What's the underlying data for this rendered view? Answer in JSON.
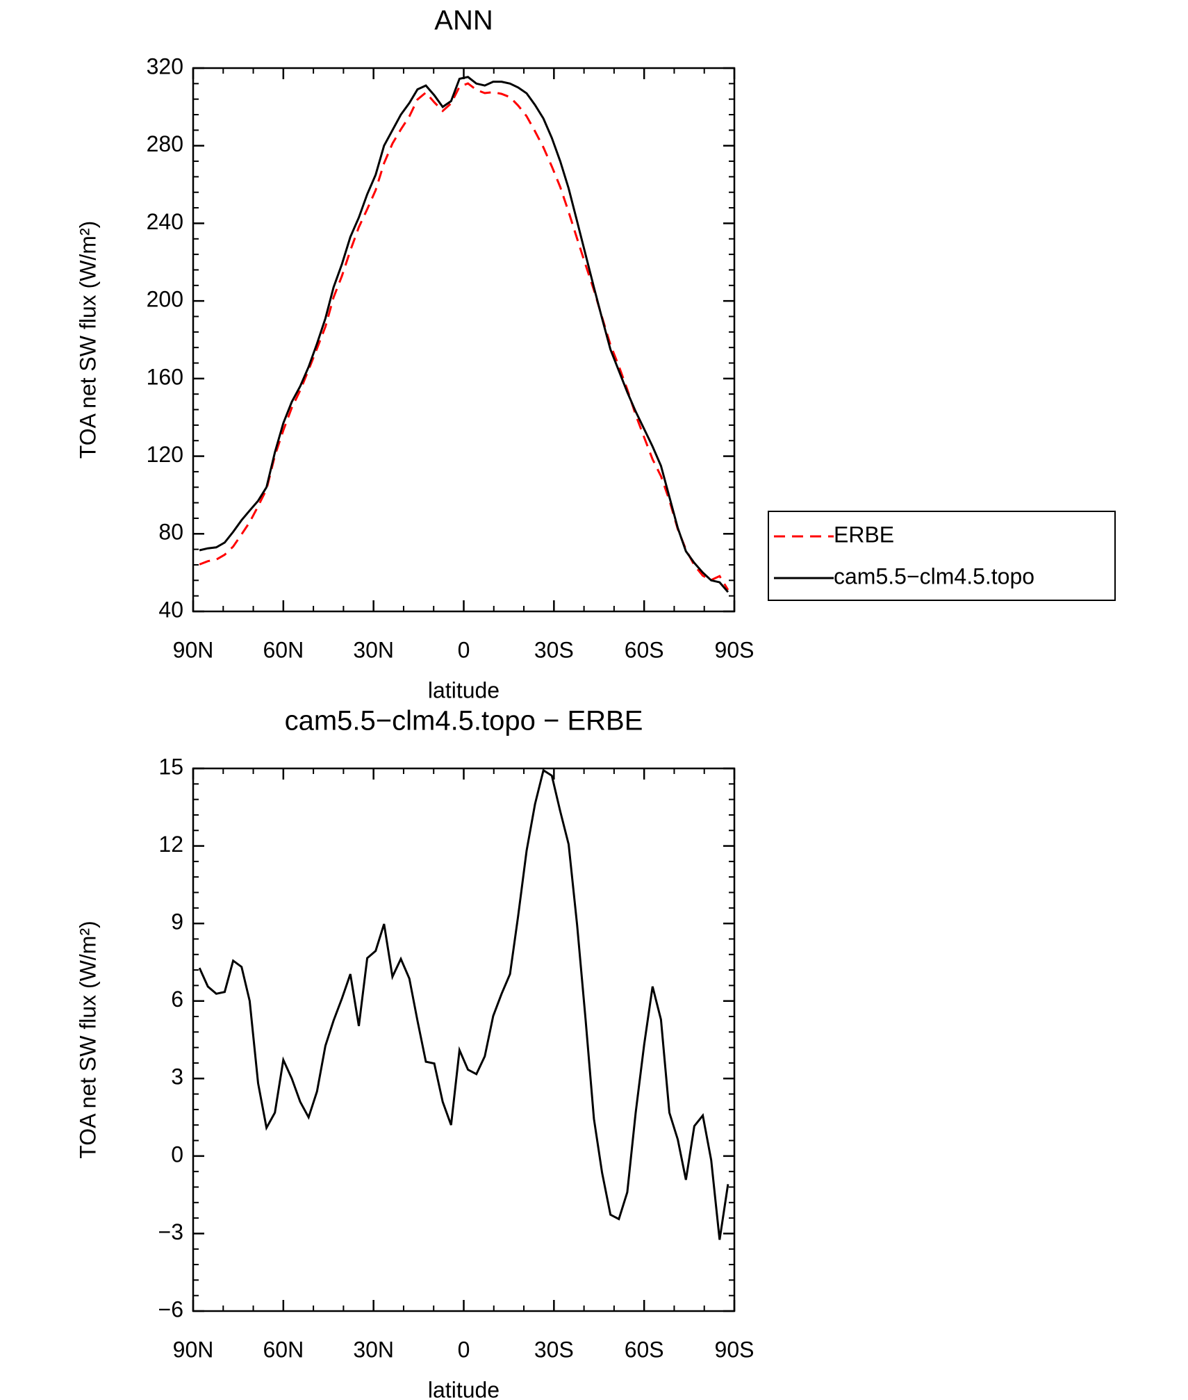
{
  "chart_data": [
    {
      "type": "line",
      "title": "ANN",
      "xlabel": "latitude",
      "ylabel": "TOA net SW flux (W/m²)",
      "x": [
        87.9,
        85.1,
        82.3,
        79.5,
        76.7,
        73.9,
        71.2,
        68.4,
        65.6,
        62.8,
        60.0,
        57.2,
        54.4,
        51.6,
        48.8,
        46.0,
        43.3,
        40.5,
        37.7,
        34.9,
        32.1,
        29.3,
        26.5,
        23.7,
        20.9,
        18.1,
        15.4,
        12.6,
        9.8,
        7.0,
        4.2,
        1.4,
        -1.4,
        -4.2,
        -7.0,
        -9.8,
        -12.6,
        -15.4,
        -18.1,
        -20.9,
        -23.7,
        -26.5,
        -29.3,
        -32.1,
        -34.9,
        -37.7,
        -40.5,
        -43.3,
        -46.0,
        -48.8,
        -51.6,
        -54.4,
        -57.2,
        -60.0,
        -62.8,
        -65.6,
        -68.4,
        -71.2,
        -73.9,
        -76.7,
        -79.5,
        -82.3,
        -85.1,
        -87.9
      ],
      "series": [
        {
          "name": "ERBE",
          "color": "#ff0000",
          "style": "dashed",
          "values": [
            64.2,
            65.9,
            66.7,
            69.2,
            73.4,
            79.7,
            86.0,
            94.2,
            102.9,
            120.3,
            133.3,
            145.0,
            153.9,
            164.5,
            175.5,
            186.7,
            201.8,
            212.9,
            226.0,
            238.0,
            247.3,
            257.1,
            271.0,
            281.1,
            288.4,
            295.1,
            303.8,
            307.4,
            302.4,
            297.9,
            301.8,
            310.4,
            312.1,
            308.8,
            307.1,
            307.6,
            306.7,
            305.0,
            300.7,
            295.2,
            287.4,
            279.1,
            269.3,
            258.7,
            245.9,
            232.1,
            218.7,
            205.6,
            191.6,
            177.3,
            166.4,
            154.4,
            141.3,
            129.7,
            118.4,
            109.7,
            97.3,
            82.4,
            71.9,
            63.8,
            58.4,
            56.2,
            58.2,
            51.1
          ]
        },
        {
          "name": "cam5.5−clm4.5.topo",
          "color": "#000000",
          "style": "solid",
          "values": [
            71.5,
            72.5,
            73,
            75.5,
            81,
            87,
            92,
            97,
            104,
            122,
            137,
            148,
            156,
            166,
            178,
            191,
            207,
            219,
            233,
            243,
            255,
            265,
            280,
            288,
            296,
            302,
            309,
            311,
            306,
            300,
            303,
            314.5,
            315.4,
            312,
            311,
            313,
            313,
            312,
            310,
            307,
            301,
            294,
            284,
            272,
            258,
            241,
            224,
            207,
            191,
            175,
            164,
            153,
            143,
            134,
            125,
            115,
            99,
            83,
            71,
            65,
            60,
            56,
            55,
            50
          ]
        }
      ],
      "xlim": [
        90,
        -90
      ],
      "xticks": [
        {
          "value": 90,
          "label": "90N"
        },
        {
          "value": 60,
          "label": "60N"
        },
        {
          "value": 30,
          "label": "30N"
        },
        0,
        {
          "value": -30,
          "label": "30S"
        },
        {
          "value": -60,
          "label": "60S"
        },
        {
          "value": -90,
          "label": "90S"
        }
      ],
      "ylim": [
        40,
        320
      ],
      "yticks": [
        40,
        80,
        120,
        160,
        200,
        240,
        280,
        320
      ],
      "legend": "right"
    },
    {
      "type": "line",
      "title": "cam5.5−clm4.5.topo − ERBE",
      "xlabel": "latitude",
      "ylabel": "TOA net SW flux (W/m²)",
      "x": [
        87.9,
        85.1,
        82.3,
        79.5,
        76.7,
        73.9,
        71.2,
        68.4,
        65.6,
        62.8,
        60.0,
        57.2,
        54.4,
        51.6,
        48.8,
        46.0,
        43.3,
        40.5,
        37.7,
        34.9,
        32.1,
        29.3,
        26.5,
        23.7,
        20.9,
        18.1,
        15.4,
        12.6,
        9.8,
        7.0,
        4.2,
        1.4,
        -1.4,
        -4.2,
        -7.0,
        -9.8,
        -12.6,
        -15.4,
        -18.1,
        -20.9,
        -23.7,
        -26.5,
        -29.3,
        -32.1,
        -34.9,
        -37.7,
        -40.5,
        -43.3,
        -46.0,
        -48.8,
        -51.6,
        -54.4,
        -57.2,
        -60.0,
        -62.8,
        -65.6,
        -68.4,
        -71.2,
        -73.9,
        -76.7,
        -79.5,
        -82.3,
        -85.1,
        -87.9
      ],
      "values": [
        7.28,
        6.56,
        6.28,
        6.35,
        7.56,
        7.32,
        6.0,
        2.82,
        1.09,
        1.68,
        3.72,
        3.0,
        2.1,
        1.5,
        2.5,
        4.27,
        5.24,
        6.1,
        7.04,
        5.03,
        7.66,
        7.94,
        8.98,
        6.94,
        7.63,
        6.87,
        5.24,
        3.65,
        3.58,
        2.1,
        1.2,
        4.1,
        3.34,
        3.17,
        3.86,
        5.42,
        6.28,
        7.04,
        9.29,
        11.82,
        13.62,
        14.93,
        14.72,
        13.34,
        12.06,
        8.94,
        5.31,
        1.44,
        -0.64,
        -2.27,
        -2.44,
        -1.4,
        1.68,
        4.31,
        6.56,
        5.28,
        1.68,
        0.64,
        -0.92,
        1.16,
        1.57,
        -0.16,
        -3.24,
        -1.09
      ],
      "color": "#000000",
      "xlim": [
        90,
        -90
      ],
      "xticks": [
        {
          "value": 90,
          "label": "90N"
        },
        {
          "value": 60,
          "label": "60N"
        },
        {
          "value": 30,
          "label": "30N"
        },
        0,
        {
          "value": -30,
          "label": "30S"
        },
        {
          "value": -60,
          "label": "60S"
        },
        {
          "value": -90,
          "label": "90S"
        }
      ],
      "ylim": [
        -6,
        15
      ],
      "yticks": [
        {
          "value": -6,
          "label": "−6"
        },
        {
          "value": -3,
          "label": "−3"
        },
        0,
        3,
        6,
        9,
        12,
        15
      ]
    }
  ]
}
